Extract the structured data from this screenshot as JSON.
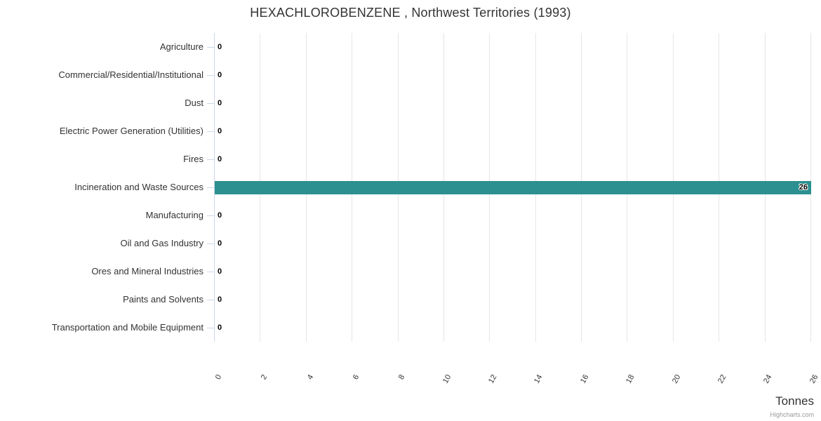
{
  "chart_data": {
    "type": "bar",
    "orientation": "horizontal",
    "title": "HEXACHLOROBENZENE , Northwest Territories (1993)",
    "categories": [
      "Agriculture",
      "Commercial/Residential/Institutional",
      "Dust",
      "Electric Power Generation (Utilities)",
      "Fires",
      "Incineration and Waste Sources",
      "Manufacturing",
      "Oil and Gas Industry",
      "Ores and Mineral Industries",
      "Paints and Solvents",
      "Transportation and Mobile Equipment"
    ],
    "values": [
      0,
      0,
      0,
      0,
      0,
      26,
      0,
      0,
      0,
      0,
      0
    ],
    "data_labels": [
      "0",
      "0",
      "0",
      "0",
      "0",
      "26",
      "0",
      "0",
      "0",
      "0",
      "0"
    ],
    "xlabel": "Tonnes",
    "ylabel": "",
    "xlim": [
      0,
      26
    ],
    "tick_interval": 2,
    "x_ticks": [
      "0",
      "2",
      "4",
      "6",
      "8",
      "10",
      "12",
      "14",
      "16",
      "18",
      "20",
      "22",
      "24",
      "26"
    ],
    "grid": true,
    "legend": false,
    "bar_color": "#2b908f",
    "colors": {
      "grid": "#e6e6e6",
      "axis_line": "#ccd6eb",
      "label": "#333333",
      "data_label": "#000000",
      "credits": "#999999"
    }
  },
  "credits": "Highcharts.com"
}
